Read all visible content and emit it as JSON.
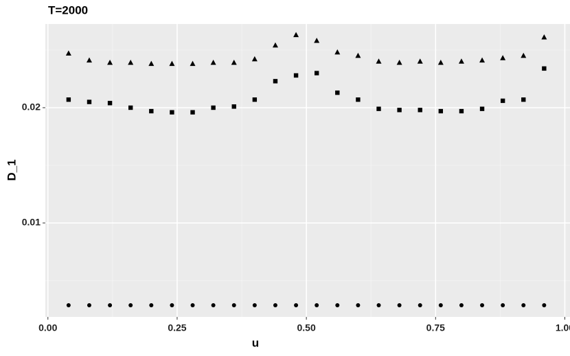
{
  "chart_data": {
    "type": "scatter",
    "title": "T=2000",
    "x_label": "u",
    "y_label": "D_1",
    "x": [
      0.04,
      0.08,
      0.12,
      0.16,
      0.2,
      0.24,
      0.28,
      0.32,
      0.36,
      0.4,
      0.44,
      0.48,
      0.52,
      0.56,
      0.6,
      0.64,
      0.68,
      0.72,
      0.76,
      0.8,
      0.84,
      0.88,
      0.92,
      0.96
    ],
    "series": [
      {
        "shape": "triangle",
        "color": "#000000",
        "values": [
          0.0247,
          0.0241,
          0.0239,
          0.0239,
          0.0238,
          0.0238,
          0.0238,
          0.0239,
          0.0239,
          0.0242,
          0.0254,
          0.0263,
          0.0258,
          0.0248,
          0.0245,
          0.024,
          0.0239,
          0.024,
          0.0239,
          0.024,
          0.0241,
          0.0243,
          0.0245,
          0.0261
        ]
      },
      {
        "shape": "square",
        "color": "#000000",
        "values": [
          0.0207,
          0.0205,
          0.0204,
          0.02,
          0.0197,
          0.0196,
          0.0196,
          0.02,
          0.0201,
          0.0207,
          0.0223,
          0.0228,
          0.023,
          0.0213,
          0.0207,
          0.0199,
          0.0198,
          0.0198,
          0.0197,
          0.0197,
          0.0199,
          0.0206,
          0.0207,
          0.0234
        ]
      },
      {
        "shape": "circle",
        "color": "#000000",
        "values": [
          0.00286,
          0.00286,
          0.00286,
          0.00286,
          0.00286,
          0.00286,
          0.00286,
          0.00286,
          0.00286,
          0.00286,
          0.00286,
          0.00286,
          0.00286,
          0.00286,
          0.00286,
          0.00286,
          0.00286,
          0.00286,
          0.00286,
          0.00286,
          0.00286,
          0.00286,
          0.00286,
          0.00286
        ]
      }
    ],
    "xlim": [
      -0.005,
      1.01
    ],
    "ylim": [
      0.00185,
      0.02726
    ],
    "xticks": [
      {
        "value": 0,
        "label": "0.00"
      },
      {
        "value": 0.25,
        "label": "0.25"
      },
      {
        "value": 0.5,
        "label": "0.50"
      },
      {
        "value": 0.75,
        "label": "0.75"
      },
      {
        "value": 1,
        "label": "1.00"
      }
    ],
    "yticks": [
      0.01,
      0.02
    ],
    "xminor": [
      0.125,
      0.375,
      0.625,
      0.875
    ],
    "yminor": [
      0.005,
      0.015,
      0.025
    ],
    "grid": true
  }
}
